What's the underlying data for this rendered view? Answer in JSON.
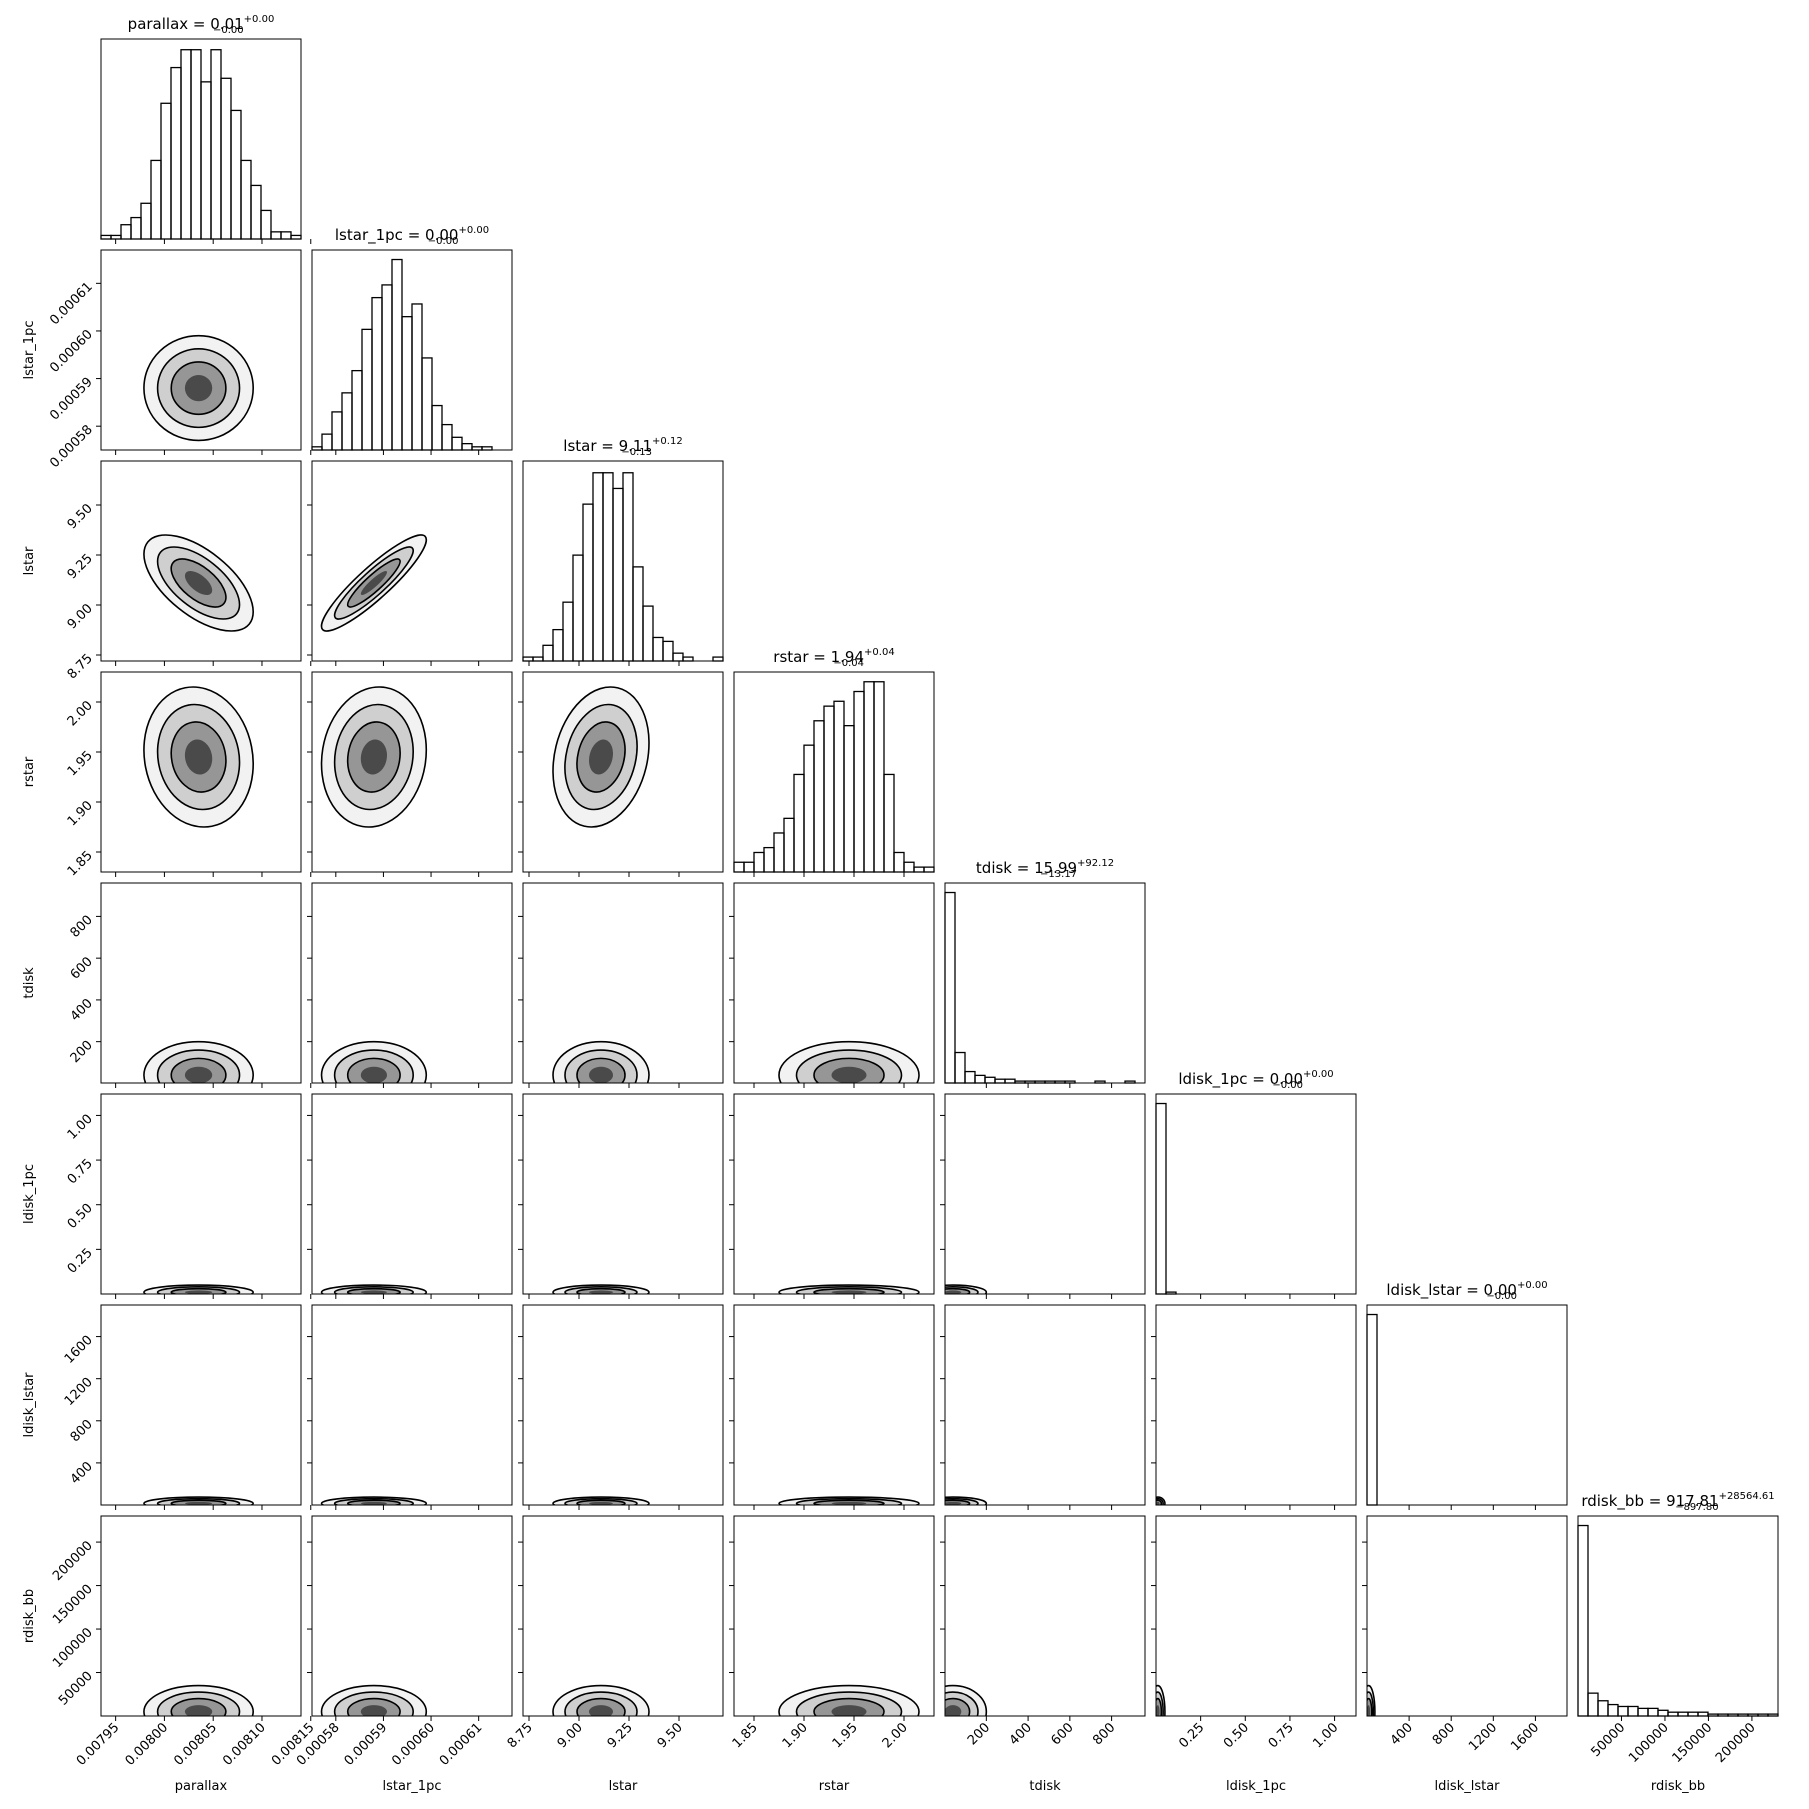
{
  "chart_data": {
    "type": "corner",
    "params": [
      {
        "name": "parallax",
        "title": {
          "main": "parallax = 0.01",
          "upper": "+0.00",
          "lower": "−0.00"
        },
        "lim": [
          0.007935,
          0.00814
        ],
        "ticks": [
          0.00795,
          {
            "value": 0.008,
            "label": "0.00800"
          },
          0.00805,
          {
            "value": 0.0081,
            "label": "0.00810"
          },
          0.00815
        ],
        "mean": 0.008035,
        "sd": 2.8e-05,
        "hist": [
          1,
          1,
          4,
          6,
          10,
          22,
          38,
          48,
          53,
          53,
          44,
          53,
          45,
          36,
          22,
          15,
          8,
          2,
          2,
          1
        ],
        "hist_ylim": [
          0,
          56
        ]
      },
      {
        "name": "lstar_1pc",
        "title": {
          "main": "lstar_1pc = 0.00",
          "upper": "+0.00",
          "lower": "−0.00"
        },
        "lim": [
          0.000575,
          0.000617
        ],
        "ticks": [
          0.00058,
          0.00059,
          {
            "value": 0.0006,
            "label": "0.00060"
          },
          0.00061
        ],
        "mean": 0.000588,
        "sd": 5.5e-06,
        "hist": [
          1,
          5,
          12,
          18,
          25,
          38,
          48,
          52,
          60,
          42,
          46,
          29,
          14,
          8,
          4,
          2,
          1,
          1,
          0,
          0
        ],
        "hist_ylim": [
          0,
          63
        ]
      },
      {
        "name": "lstar",
        "title": {
          "main": "lstar = 9.11",
          "upper": "+0.12",
          "lower": "−0.13"
        },
        "lim": [
          8.72,
          9.72
        ],
        "ticks": [
          8.75,
          {
            "value": 9,
            "label": "9.00"
          },
          9.25,
          {
            "value": 9.5,
            "label": "9.50"
          }
        ],
        "mean": 9.11,
        "sd": 0.12,
        "hist": [
          1,
          1,
          4,
          8,
          15,
          27,
          40,
          48,
          48,
          44,
          48,
          24,
          14,
          6,
          5,
          2,
          1,
          0,
          0,
          1
        ],
        "hist_ylim": [
          0,
          51
        ]
      },
      {
        "name": "rstar",
        "title": {
          "main": "rstar = 1.94",
          "upper": "+0.04",
          "lower": "−0.04"
        },
        "lim": [
          1.83,
          2.03
        ],
        "ticks": [
          1.85,
          {
            "value": 1.9,
            "label": "1.90"
          },
          1.95,
          {
            "value": 2,
            "label": "2.00"
          }
        ],
        "mean": 1.945,
        "sd": 0.035,
        "hist": [
          2,
          2,
          4,
          5,
          8,
          11,
          20,
          26,
          31,
          34,
          35,
          30,
          37,
          39,
          39,
          20,
          4,
          2,
          1,
          1
        ],
        "hist_ylim": [
          0,
          41
        ]
      },
      {
        "name": "tdisk",
        "title": {
          "main": "tdisk = 15.99",
          "upper": "+92.12",
          "lower": "−13.17"
        },
        "lim": [
          2,
          960
        ],
        "ticks": [
          200,
          400,
          600,
          800
        ],
        "mean": 40,
        "sd": 80,
        "hist": [
          100,
          16,
          6,
          4,
          3,
          2,
          2,
          1,
          1,
          1,
          1,
          1,
          1,
          0,
          0,
          1,
          0,
          0,
          1,
          0
        ],
        "hist_ylim": [
          0,
          105
        ]
      },
      {
        "name": "ldisk_1pc",
        "title": {
          "main": "ldisk_1pc = 0.00",
          "upper": "+0.00",
          "lower": "−0.00"
        },
        "lim": [
          0,
          1.12
        ],
        "ticks": [
          0.25,
          {
            "value": 0.5,
            "label": "0.50"
          },
          0.75,
          {
            "value": 1,
            "label": "1.00"
          }
        ],
        "mean": 0.01,
        "sd": 0.02,
        "hist": [
          100,
          1,
          0,
          0,
          0,
          0,
          0,
          0,
          0,
          0,
          0,
          0,
          0,
          0,
          0,
          0,
          0,
          0,
          0,
          0
        ],
        "hist_ylim": [
          0,
          105
        ]
      },
      {
        "name": "ldisk_lstar",
        "title": {
          "main": "ldisk_lstar = 0.00",
          "upper": "+0.00",
          "lower": "−0.00"
        },
        "lim": [
          0,
          1900
        ],
        "ticks": [
          400,
          800,
          1200,
          1600
        ],
        "mean": 15,
        "sd": 30,
        "hist": [
          100,
          0,
          0,
          0,
          0,
          0,
          0,
          0,
          0,
          0,
          0,
          0,
          0,
          0,
          0,
          0,
          0,
          0,
          0,
          0
        ],
        "hist_ylim": [
          0,
          105
        ]
      },
      {
        "name": "rdisk_bb",
        "title": {
          "main": "rdisk_bb = 917.81",
          "upper": "+28564.61",
          "lower": "−897.80"
        },
        "lim": [
          0,
          230000
        ],
        "ticks": [
          50000,
          100000,
          150000,
          200000
        ],
        "mean": 5000,
        "sd": 15000,
        "hist": [
          100,
          12,
          8,
          6,
          5,
          5,
          4,
          4,
          3,
          2,
          2,
          2,
          2,
          1,
          1,
          1,
          1,
          1,
          1,
          1
        ],
        "hist_ylim": [
          0,
          105
        ]
      }
    ],
    "pairs": [
      {
        "x": 0,
        "y": 1,
        "rho": 0
      },
      {
        "x": 0,
        "y": 2,
        "rho": -0.6
      },
      {
        "x": 1,
        "y": 2,
        "rho": 0.9
      },
      {
        "x": 0,
        "y": 3,
        "rho": -0.1
      },
      {
        "x": 1,
        "y": 3,
        "rho": 0.1
      },
      {
        "x": 2,
        "y": 3,
        "rho": 0.2
      },
      {
        "x": 0,
        "y": 4,
        "rho": 0
      },
      {
        "x": 1,
        "y": 4,
        "rho": 0
      },
      {
        "x": 2,
        "y": 4,
        "rho": 0
      },
      {
        "x": 3,
        "y": 4,
        "rho": 0
      },
      {
        "x": 0,
        "y": 5,
        "rho": 0
      },
      {
        "x": 1,
        "y": 5,
        "rho": 0
      },
      {
        "x": 2,
        "y": 5,
        "rho": 0
      },
      {
        "x": 3,
        "y": 5,
        "rho": 0
      },
      {
        "x": 4,
        "y": 5,
        "rho": 0
      },
      {
        "x": 0,
        "y": 6,
        "rho": 0
      },
      {
        "x": 1,
        "y": 6,
        "rho": 0
      },
      {
        "x": 2,
        "y": 6,
        "rho": 0
      },
      {
        "x": 3,
        "y": 6,
        "rho": 0
      },
      {
        "x": 4,
        "y": 6,
        "rho": 0
      },
      {
        "x": 5,
        "y": 6,
        "rho": 0
      },
      {
        "x": 0,
        "y": 7,
        "rho": 0
      },
      {
        "x": 1,
        "y": 7,
        "rho": 0
      },
      {
        "x": 2,
        "y": 7,
        "rho": 0
      },
      {
        "x": 3,
        "y": 7,
        "rho": 0
      },
      {
        "x": 4,
        "y": 7,
        "rho": 0
      },
      {
        "x": 5,
        "y": 7,
        "rho": 0
      },
      {
        "x": 6,
        "y": 7,
        "rho": 0
      }
    ]
  }
}
